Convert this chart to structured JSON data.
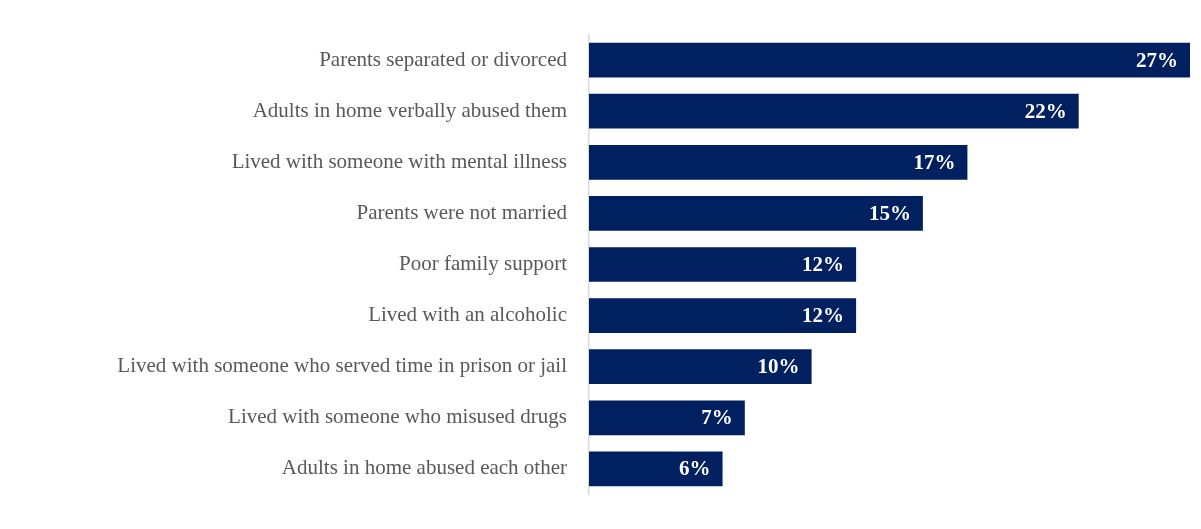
{
  "chart_data": {
    "type": "bar",
    "orientation": "horizontal",
    "categories": [
      "Parents separated or divorced",
      "Adults in home verbally abused them",
      "Lived with someone with mental illness",
      "Parents were not married",
      "Poor family support",
      "Lived with an alcoholic",
      "Lived with someone who served time in prison or jail",
      "Lived with someone who misused drugs",
      "Adults in home abused each other"
    ],
    "values": [
      27,
      22,
      17,
      15,
      12,
      12,
      10,
      7,
      6
    ],
    "value_labels": [
      "27%",
      "22%",
      "17%",
      "15%",
      "12%",
      "12%",
      "10%",
      "7%",
      "6%"
    ],
    "color": "#002060",
    "tick_labels": "y",
    "grid": false,
    "legend": false
  }
}
